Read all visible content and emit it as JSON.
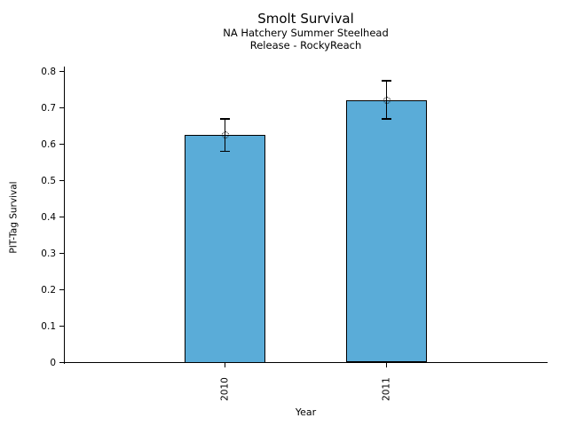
{
  "chart_data": {
    "type": "bar",
    "title": "Smolt Survival",
    "subtitle": [
      "NA Hatchery Summer Steelhead",
      "Release - RockyReach"
    ],
    "xlabel": "Year",
    "ylabel": "PIT-Tag Survival",
    "categories": [
      "2010",
      "2011"
    ],
    "values": [
      0.625,
      0.72
    ],
    "error_bars": [
      {
        "low": 0.58,
        "high": 0.67
      },
      {
        "low": 0.67,
        "high": 0.775
      }
    ],
    "marker": "open-circle",
    "yticks": [
      0,
      0.1,
      0.2,
      0.3,
      0.4,
      0.5,
      0.6,
      0.7,
      0.8
    ],
    "ytick_labels": [
      "0",
      "0.1",
      "0.2",
      "0.3",
      "0.4",
      "0.5",
      "0.6",
      "0.7",
      "0.8"
    ],
    "ylim": [
      0,
      0.8
    ],
    "grid": false,
    "legend": "none",
    "bar_color": "#5AACD8",
    "bar_edge_color": "#000000",
    "error_color": "#000000",
    "background_color": "#FFFFFF"
  }
}
